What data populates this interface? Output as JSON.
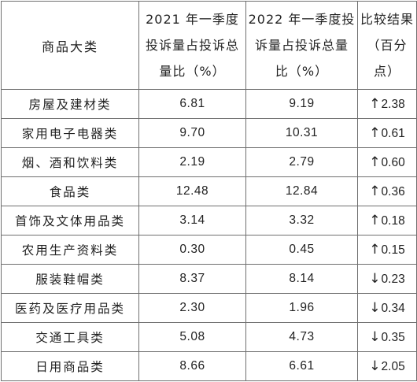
{
  "table": {
    "headers": {
      "category": "商品大类",
      "share_2021": [
        "2021 年一季度",
        "投诉量占投诉总",
        "量比（%）"
      ],
      "share_2022": [
        "2022 年一季度投",
        "诉量占投诉总量",
        "比（%）"
      ],
      "change": [
        "比较结果",
        "（百分",
        "点）"
      ]
    },
    "rows": [
      {
        "category": "房屋及建材类",
        "share_2021": "6.81",
        "share_2022": "9.19",
        "direction": "↑",
        "change": "2.38"
      },
      {
        "category": "家用电子电器类",
        "share_2021": "9.70",
        "share_2022": "10.31",
        "direction": "↑",
        "change": "0.61"
      },
      {
        "category": "烟、酒和饮料类",
        "share_2021": "2.19",
        "share_2022": "2.79",
        "direction": "↑",
        "change": "0.60"
      },
      {
        "category": "食品类",
        "share_2021": "12.48",
        "share_2022": "12.84",
        "direction": "↑",
        "change": "0.36"
      },
      {
        "category": "首饰及文体用品类",
        "share_2021": "3.14",
        "share_2022": "3.32",
        "direction": "↑",
        "change": "0.18"
      },
      {
        "category": "农用生产资料类",
        "share_2021": "0.30",
        "share_2022": "0.45",
        "direction": "↑",
        "change": "0.15"
      },
      {
        "category": "服装鞋帽类",
        "share_2021": "8.37",
        "share_2022": "8.14",
        "direction": "↓",
        "change": "0.23"
      },
      {
        "category": "医药及医疗用品类",
        "share_2021": "2.30",
        "share_2022": "1.96",
        "direction": "↓",
        "change": "0.34"
      },
      {
        "category": "交通工具类",
        "share_2021": "5.08",
        "share_2022": "4.73",
        "direction": "↓",
        "change": "0.35"
      },
      {
        "category": "日用商品类",
        "share_2021": "8.66",
        "share_2022": "6.61",
        "direction": "↓",
        "change": "2.05"
      }
    ]
  }
}
